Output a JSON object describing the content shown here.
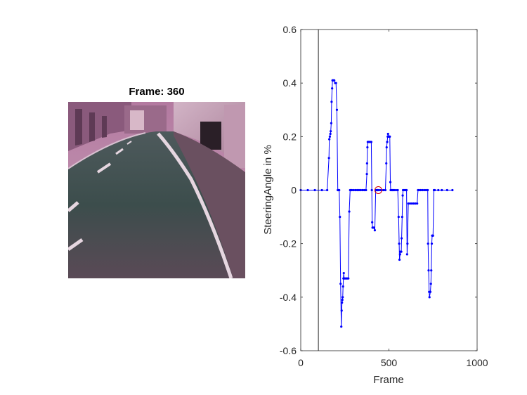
{
  "frame_panel": {
    "title": "Frame: 360"
  },
  "colors": {
    "series": "#0000ff",
    "marker": "#d40000",
    "cursor_line": "#262626",
    "axes": "#262626",
    "sky": "#c08aac",
    "road": "#3a4c4c"
  },
  "chart_data": {
    "type": "line",
    "title": "",
    "xlabel": "Frame",
    "ylabel": "SteeringAngle in %",
    "xlim": [
      0,
      1000
    ],
    "ylim": [
      -0.6,
      0.6
    ],
    "xticks": [
      0,
      500,
      1000
    ],
    "yticks": [
      -0.6,
      -0.4,
      -0.2,
      0,
      0.2,
      0.4,
      0.6
    ],
    "xtick_labels": [
      "0",
      "500",
      "1000"
    ],
    "ytick_labels": [
      "-0.6",
      "-0.4",
      "-0.2",
      "0",
      "0.2",
      "0.4",
      "0.6"
    ],
    "grid": false,
    "box": true,
    "series": [
      {
        "marker": "dot",
        "x": [
          0,
          40,
          80,
          120,
          150,
          160,
          162,
          165,
          168,
          170,
          173,
          175,
          178,
          180,
          182,
          185,
          190,
          195,
          200,
          205,
          210,
          212,
          215,
          218,
          222,
          226,
          230,
          232,
          234,
          236,
          238,
          240,
          242,
          244,
          246,
          250,
          255,
          260,
          265,
          270,
          275,
          280,
          285,
          290,
          300,
          310,
          320,
          330,
          340,
          350,
          360,
          370,
          375,
          376,
          378,
          380,
          382,
          385,
          390,
          395,
          400,
          403,
          405,
          407,
          410,
          415,
          420,
          425,
          430,
          432,
          435,
          437,
          440,
          450,
          460,
          470,
          480,
          485,
          487,
          490,
          493,
          495,
          497,
          500,
          503,
          505,
          508,
          510,
          515,
          520,
          525,
          530,
          540,
          550,
          555,
          558,
          560,
          563,
          565,
          570,
          572,
          575,
          578,
          580,
          585,
          590,
          595,
          600,
          603,
          605,
          610,
          620,
          630,
          640,
          650,
          660,
          665,
          670,
          680,
          690,
          700,
          710,
          720,
          722,
          725,
          728,
          730,
          735,
          738,
          740,
          743,
          745,
          748,
          750,
          755,
          760,
          780,
          800,
          830,
          860
        ],
        "y": [
          0,
          0,
          0,
          0,
          0,
          0.12,
          0.19,
          0.2,
          0.21,
          0.22,
          0.25,
          0.33,
          0.38,
          0.41,
          0.41,
          0.41,
          0.41,
          0.4,
          0.4,
          0.3,
          0.0,
          0.0,
          0.0,
          0.0,
          -0.1,
          -0.35,
          -0.51,
          -0.45,
          -0.42,
          -0.41,
          -0.4,
          -0.36,
          -0.33,
          -0.31,
          -0.33,
          -0.33,
          -0.33,
          -0.33,
          -0.33,
          -0.33,
          -0.08,
          0,
          0,
          0,
          0,
          0,
          0,
          0,
          0,
          0,
          0,
          0.0,
          0.06,
          0.1,
          0.16,
          0.18,
          0.18,
          0.18,
          0.18,
          0.18,
          0.18,
          0.0,
          -0.12,
          -0.14,
          -0.14,
          -0.14,
          -0.15,
          0,
          0,
          0,
          0,
          0,
          0,
          0,
          0,
          0,
          0,
          0.1,
          0.16,
          0.18,
          0.2,
          0.21,
          0.2,
          0.2,
          0.2,
          0.2,
          0.03,
          0,
          0,
          0,
          0,
          0,
          0,
          0,
          -0.1,
          -0.2,
          -0.26,
          -0.24,
          -0.23,
          -0.23,
          -0.18,
          -0.1,
          -0.02,
          0,
          0,
          0,
          0,
          0.0,
          -0.24,
          -0.2,
          -0.05,
          -0.05,
          -0.05,
          -0.05,
          -0.05,
          -0.05,
          0,
          0,
          0,
          0,
          0,
          0,
          0,
          -0.2,
          -0.3,
          -0.38,
          -0.4,
          -0.38,
          -0.35,
          -0.3,
          -0.2,
          -0.17,
          -0.17,
          -0.17,
          0,
          0,
          0,
          0,
          0,
          0
        ]
      }
    ],
    "cursor_x": 100,
    "highlight_point": {
      "x": 440,
      "y": 0
    }
  }
}
